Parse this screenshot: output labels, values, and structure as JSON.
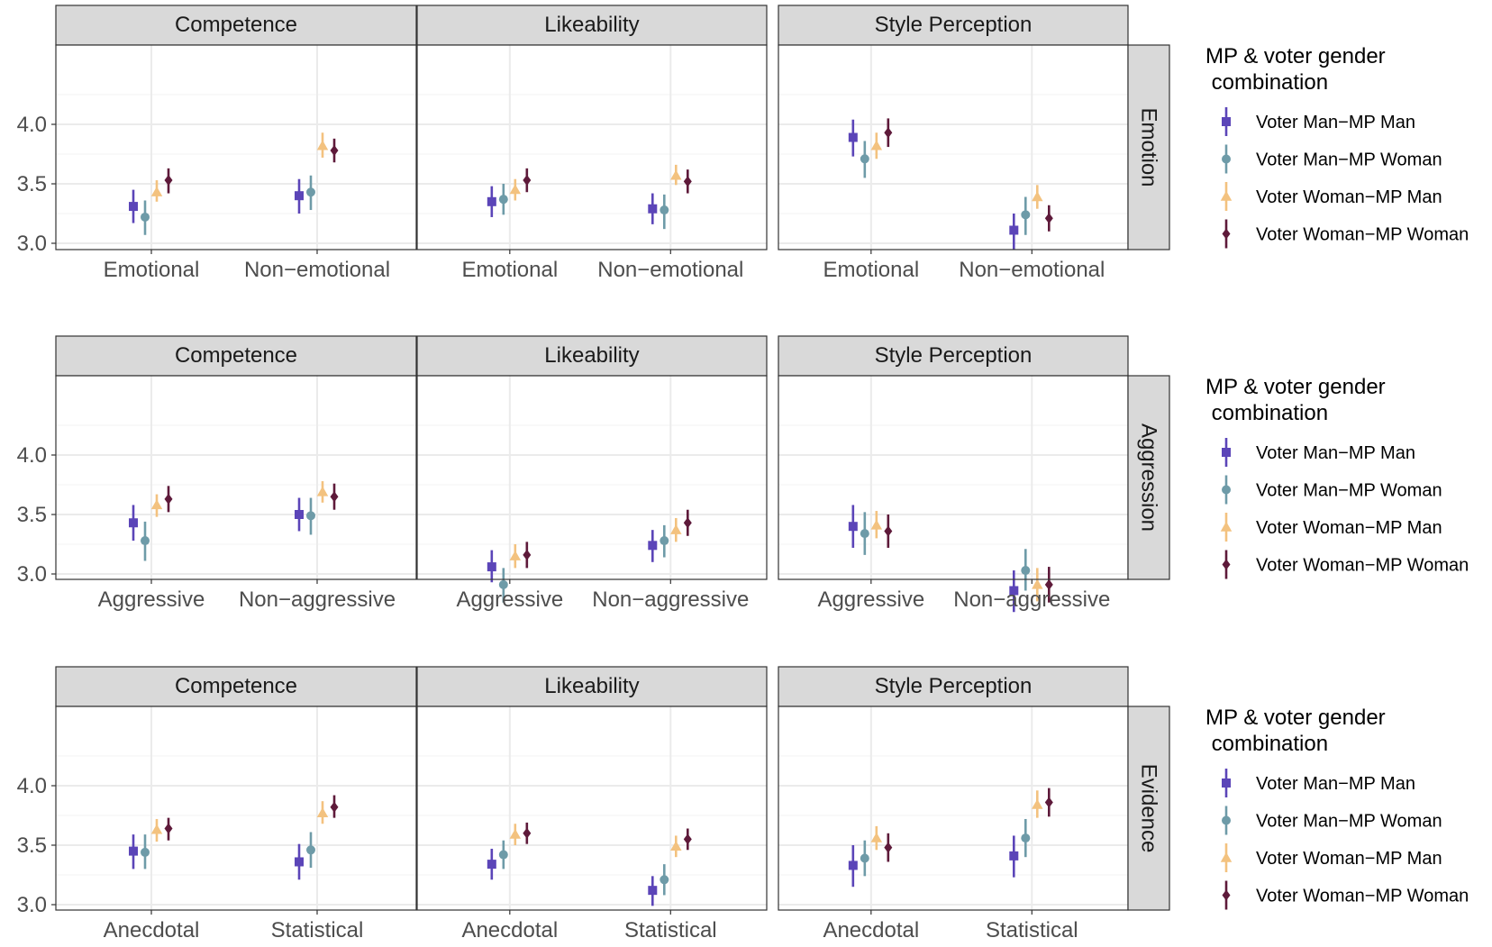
{
  "legend": {
    "title": "MP & voter gender\n combination",
    "items": [
      {
        "label": "Voter Man−MP Man",
        "color": "#5B45B8",
        "shape": "square"
      },
      {
        "label": "Voter Man−MP Woman",
        "color": "#6E9BA8",
        "shape": "circle"
      },
      {
        "label": "Voter Woman−MP Man",
        "color": "#F3C27F",
        "shape": "triangle"
      },
      {
        "label": "Voter Woman−MP Woman",
        "color": "#5E1A3A",
        "shape": "diamond"
      }
    ]
  },
  "colors": {
    "strip_fill": "#D9D9D9",
    "strip_border": "#333333",
    "panel_border": "#333333",
    "grid_major": "#EBEBEB",
    "grid_minor": "#F3F3F3",
    "axis_text": "#4D4D4D",
    "strip_text": "#1A1A1A"
  },
  "chart_data": [
    {
      "type": "pointrange",
      "row_label": "Emotion",
      "facets": [
        "Competence",
        "Likeability",
        "Style Perception"
      ],
      "categories": [
        "Emotional",
        "Non−emotional"
      ],
      "y_ticks": [
        3.0,
        3.5,
        4.0
      ],
      "ylim": [
        2.6,
        4.3
      ],
      "grid": true,
      "legend_position": "right",
      "series": [
        {
          "name": "Voter Man−MP Man",
          "estimates": [
            [
              3.31,
              3.4
            ],
            [
              3.35,
              3.29
            ],
            [
              3.89,
              3.11
            ]
          ],
          "ci": [
            [
              [
                3.17,
                3.45
              ],
              [
                3.25,
                3.54
              ]
            ],
            [
              [
                3.22,
                3.48
              ],
              [
                3.16,
                3.42
              ]
            ],
            [
              [
                3.73,
                4.04
              ],
              [
                2.95,
                3.25
              ]
            ]
          ]
        },
        {
          "name": "Voter Man−MP Woman",
          "estimates": [
            [
              3.22,
              3.43
            ],
            [
              3.37,
              3.28
            ],
            [
              3.71,
              3.24
            ]
          ],
          "ci": [
            [
              [
                3.07,
                3.36
              ],
              [
                3.28,
                3.57
              ]
            ],
            [
              [
                3.24,
                3.5
              ],
              [
                3.12,
                3.41
              ]
            ],
            [
              [
                3.55,
                3.86
              ],
              [
                3.07,
                3.39
              ]
            ]
          ]
        },
        {
          "name": "Voter Woman−MP Man",
          "estimates": [
            [
              3.43,
              3.82
            ],
            [
              3.45,
              3.57
            ],
            [
              3.82,
              3.39
            ]
          ],
          "ci": [
            [
              [
                3.35,
                3.53
              ],
              [
                3.72,
                3.93
              ]
            ],
            [
              [
                3.36,
                3.54
              ],
              [
                3.49,
                3.66
              ]
            ],
            [
              [
                3.71,
                3.93
              ],
              [
                3.29,
                3.49
              ]
            ]
          ]
        },
        {
          "name": "Voter Woman−MP Woman",
          "estimates": [
            [
              3.53,
              3.78
            ],
            [
              3.53,
              3.52
            ],
            [
              3.93,
              3.21
            ]
          ],
          "ci": [
            [
              [
                3.42,
                3.63
              ],
              [
                3.68,
                3.88
              ]
            ],
            [
              [
                3.43,
                3.63
              ],
              [
                3.42,
                3.62
              ]
            ],
            [
              [
                3.81,
                4.05
              ],
              [
                3.1,
                3.32
              ]
            ]
          ]
        }
      ]
    },
    {
      "type": "pointrange",
      "row_label": "Aggression",
      "facets": [
        "Competence",
        "Likeability",
        "Style Perception"
      ],
      "categories": [
        "Aggressive",
        "Non−aggressive"
      ],
      "y_ticks": [
        3.0,
        3.5,
        4.0
      ],
      "ylim": [
        2.6,
        4.3
      ],
      "grid": true,
      "legend_position": "right",
      "series": [
        {
          "name": "Voter Man−MP Man",
          "estimates": [
            [
              3.43,
              3.5
            ],
            [
              3.06,
              3.24
            ],
            [
              3.4,
              2.86
            ]
          ],
          "ci": [
            [
              [
                3.28,
                3.58
              ],
              [
                3.36,
                3.64
              ]
            ],
            [
              [
                2.93,
                3.2
              ],
              [
                3.1,
                3.37
              ]
            ],
            [
              [
                3.22,
                3.58
              ],
              [
                2.68,
                3.03
              ]
            ]
          ]
        },
        {
          "name": "Voter Man−MP Woman",
          "estimates": [
            [
              3.28,
              3.49
            ],
            [
              2.91,
              3.28
            ],
            [
              3.34,
              3.03
            ]
          ],
          "ci": [
            [
              [
                3.11,
                3.44
              ],
              [
                3.33,
                3.64
              ]
            ],
            [
              [
                2.76,
                3.05
              ],
              [
                3.14,
                3.41
              ]
            ],
            [
              [
                3.16,
                3.52
              ],
              [
                2.86,
                3.21
              ]
            ]
          ]
        },
        {
          "name": "Voter Woman−MP Man",
          "estimates": [
            [
              3.58,
              3.69
            ],
            [
              3.15,
              3.37
            ],
            [
              3.41,
              2.91
            ]
          ],
          "ci": [
            [
              [
                3.48,
                3.67
              ],
              [
                3.6,
                3.78
              ]
            ],
            [
              [
                3.05,
                3.25
              ],
              [
                3.27,
                3.47
              ]
            ],
            [
              [
                3.3,
                3.53
              ],
              [
                2.77,
                3.05
              ]
            ]
          ]
        },
        {
          "name": "Voter Woman−MP Woman",
          "estimates": [
            [
              3.63,
              3.65
            ],
            [
              3.16,
              3.43
            ],
            [
              3.36,
              2.91
            ]
          ],
          "ci": [
            [
              [
                3.52,
                3.74
              ],
              [
                3.54,
                3.76
              ]
            ],
            [
              [
                3.05,
                3.27
              ],
              [
                3.32,
                3.54
              ]
            ],
            [
              [
                3.22,
                3.5
              ],
              [
                2.76,
                3.06
              ]
            ]
          ]
        }
      ]
    },
    {
      "type": "pointrange",
      "row_label": "Evidence",
      "facets": [
        "Competence",
        "Likeability",
        "Style Perception"
      ],
      "categories": [
        "Anecdotal",
        "Statistical"
      ],
      "y_ticks": [
        3.0,
        3.5,
        4.0
      ],
      "ylim": [
        2.6,
        4.3
      ],
      "grid": true,
      "legend_position": "right",
      "series": [
        {
          "name": "Voter Man−MP Man",
          "estimates": [
            [
              3.45,
              3.36
            ],
            [
              3.34,
              3.12
            ],
            [
              3.33,
              3.41
            ]
          ],
          "ci": [
            [
              [
                3.3,
                3.59
              ],
              [
                3.21,
                3.51
              ]
            ],
            [
              [
                3.21,
                3.47
              ],
              [
                2.99,
                3.24
              ]
            ],
            [
              [
                3.15,
                3.5
              ],
              [
                3.23,
                3.58
              ]
            ]
          ]
        },
        {
          "name": "Voter Man−MP Woman",
          "estimates": [
            [
              3.44,
              3.46
            ],
            [
              3.42,
              3.21
            ],
            [
              3.39,
              3.56
            ]
          ],
          "ci": [
            [
              [
                3.3,
                3.59
              ],
              [
                3.31,
                3.61
              ]
            ],
            [
              [
                3.3,
                3.54
              ],
              [
                3.08,
                3.34
              ]
            ],
            [
              [
                3.24,
                3.54
              ],
              [
                3.4,
                3.72
              ]
            ]
          ]
        },
        {
          "name": "Voter Woman−MP Man",
          "estimates": [
            [
              3.63,
              3.77
            ],
            [
              3.59,
              3.49
            ],
            [
              3.56,
              3.84
            ]
          ],
          "ci": [
            [
              [
                3.53,
                3.72
              ],
              [
                3.68,
                3.87
              ]
            ],
            [
              [
                3.5,
                3.68
              ],
              [
                3.4,
                3.58
              ]
            ],
            [
              [
                3.46,
                3.66
              ],
              [
                3.73,
                3.96
              ]
            ]
          ]
        },
        {
          "name": "Voter Woman−MP Woman",
          "estimates": [
            [
              3.64,
              3.82
            ],
            [
              3.6,
              3.55
            ],
            [
              3.48,
              3.86
            ]
          ],
          "ci": [
            [
              [
                3.54,
                3.73
              ],
              [
                3.73,
                3.92
              ]
            ],
            [
              [
                3.51,
                3.69
              ],
              [
                3.46,
                3.64
              ]
            ],
            [
              [
                3.36,
                3.6
              ],
              [
                3.74,
                3.98
              ]
            ]
          ]
        }
      ]
    }
  ]
}
